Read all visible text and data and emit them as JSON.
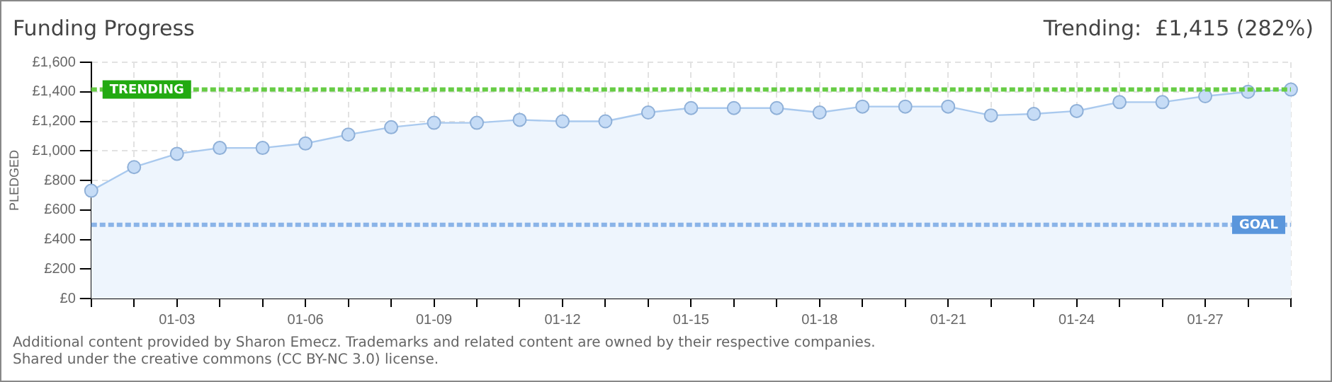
{
  "chart_data": {
    "type": "area",
    "title": "Funding Progress",
    "subtitle": "Trending:  £1,415 (282%)",
    "ylabel": "PLEDGED",
    "categories": [
      null,
      null,
      "01-03",
      null,
      null,
      "01-06",
      null,
      null,
      "01-09",
      null,
      null,
      "01-12",
      null,
      null,
      "01-15",
      null,
      null,
      "01-18",
      null,
      null,
      "01-21",
      null,
      null,
      "01-24",
      null,
      null,
      "01-27",
      null,
      null
    ],
    "series": [
      {
        "color": "#a9c9ee",
        "values": [
          730,
          890,
          980,
          1020,
          1020,
          1050,
          1110,
          1160,
          1190,
          1190,
          1210,
          1200,
          1200,
          1260,
          1290,
          1290,
          1290,
          1260,
          1300,
          1300,
          1300,
          1240,
          1250,
          1270,
          1330,
          1330,
          1370,
          1400,
          1415
        ]
      }
    ],
    "ylim": [
      0,
      1600
    ],
    "yticks": [
      {
        "value": 0,
        "label": "£0"
      },
      {
        "value": 200,
        "label": "£200"
      },
      {
        "value": 400,
        "label": "£400"
      },
      {
        "value": 600,
        "label": "£600"
      },
      {
        "value": 800,
        "label": "£800"
      },
      {
        "value": 1000,
        "label": "£1,000"
      },
      {
        "value": 1200,
        "label": "£1,200"
      },
      {
        "value": 1400,
        "label": "£1,400"
      },
      {
        "value": 1600,
        "label": "£1,600"
      }
    ],
    "ref_lines": [
      {
        "axis": "y",
        "value": 1415,
        "label": "TRENDING",
        "color": "#66cc44",
        "line_style": "dashed"
      },
      {
        "axis": "y",
        "value": 500,
        "label": "GOAL",
        "color": "#8ab4e8",
        "line_style": "dashed"
      }
    ],
    "grid": true,
    "marker": "circle",
    "legend": false,
    "annotations": [
      "Additional content provided by Sharon Emecz. Trademarks and related content are owned by their respective companies.",
      "Shared under the creative commons (CC BY-NC 3.0) license."
    ]
  }
}
